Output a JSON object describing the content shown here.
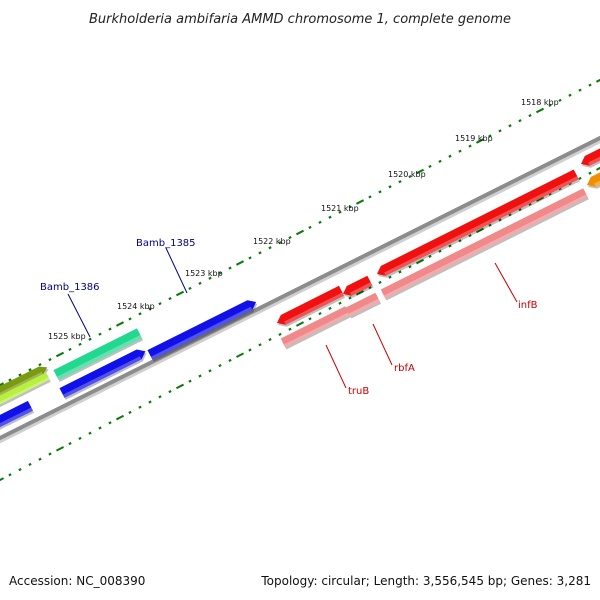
{
  "title": "Burkholderia ambifaria AMMD chromosome 1, complete genome",
  "footer": {
    "accession": "Accession: NC_008390",
    "summary": "Topology: circular; Length: 3,556,545 bp; Genes: 3,281"
  },
  "colors": {
    "backbone": "#8c8c8c",
    "tick": "#0a7a0a",
    "blue_gene": "#1010e8",
    "red_gene": "#f01010",
    "pink_feature": "#f08a8a",
    "teal_gene": "#22d890",
    "olive_gene": "#7a9a10",
    "lime_gene": "#b8f040",
    "orange_gene": "#f09000",
    "locus_label": "#00008b",
    "name_label": "#cc0000"
  },
  "ticks": [
    {
      "label": "1518 kbp"
    },
    {
      "label": "1519 kbp"
    },
    {
      "label": "1520 kbp"
    },
    {
      "label": "1521 kbp"
    },
    {
      "label": "1522 kbp"
    },
    {
      "label": "1523 kbp"
    },
    {
      "label": "1524 kbp"
    },
    {
      "label": "1525 kbp"
    }
  ],
  "gene_labels": [
    {
      "text": "Bamb_1385",
      "kind": "locus"
    },
    {
      "text": "Bamb_1386",
      "kind": "locus"
    },
    {
      "text": "infB",
      "kind": "name"
    },
    {
      "text": "rbfA",
      "kind": "name"
    },
    {
      "text": "truB",
      "kind": "name"
    }
  ]
}
